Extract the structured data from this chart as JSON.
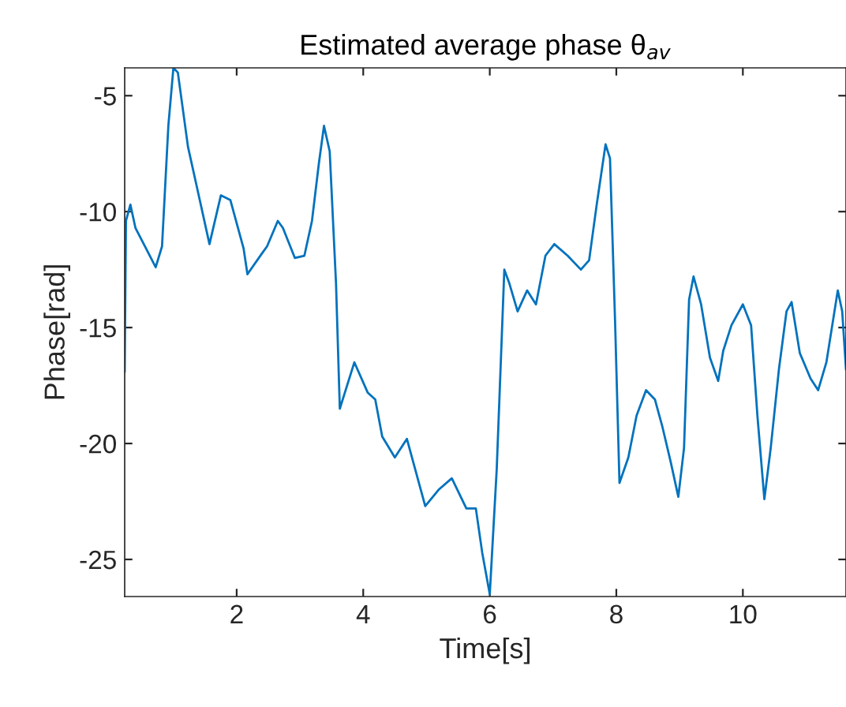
{
  "chart_data": {
    "type": "line",
    "title": "Estimated average phase θ$_{av}$",
    "xlabel": "Time[s]",
    "ylabel": "Phase[rad]",
    "xlim": [
      0.23,
      11.63
    ],
    "ylim": [
      -26.6,
      -3.8
    ],
    "xticks": [
      2,
      4,
      6,
      8,
      10
    ],
    "yticks": [
      -25,
      -20,
      -15,
      -10,
      -5
    ],
    "grid": false,
    "series": [
      {
        "color": "#0072bd",
        "x": [
          0.23,
          0.25,
          0.32,
          0.4,
          0.72,
          0.82,
          0.92,
          1.0,
          1.07,
          1.23,
          1.36,
          1.57,
          1.75,
          1.9,
          2.11,
          2.17,
          2.4,
          2.48,
          2.65,
          2.73,
          2.92,
          3.07,
          3.19,
          3.3,
          3.38,
          3.47,
          3.57,
          3.63,
          3.86,
          4.07,
          4.19,
          4.3,
          4.5,
          4.69,
          4.82,
          4.98,
          5.19,
          5.4,
          5.63,
          5.78,
          5.88,
          6.0,
          6.11,
          6.23,
          6.31,
          6.44,
          6.59,
          6.73,
          6.88,
          7.02,
          7.23,
          7.44,
          7.57,
          7.69,
          7.83,
          7.9,
          7.98,
          8.05,
          8.19,
          8.32,
          8.47,
          8.61,
          8.73,
          8.86,
          8.98,
          9.07,
          9.15,
          9.22,
          9.34,
          9.48,
          9.61,
          9.69,
          9.82,
          10.0,
          10.13,
          10.23,
          10.34,
          10.44,
          10.57,
          10.69,
          10.77,
          10.9,
          11.07,
          11.19,
          11.32,
          11.5,
          11.57,
          11.63
        ],
        "values": [
          -16.9,
          -10.4,
          -9.7,
          -10.7,
          -12.4,
          -11.5,
          -6.3,
          -3.8,
          -4.0,
          -7.2,
          -8.8,
          -11.4,
          -9.3,
          -9.5,
          -11.6,
          -12.7,
          -11.8,
          -11.5,
          -10.4,
          -10.7,
          -12.0,
          -11.9,
          -10.4,
          -7.9,
          -6.3,
          -7.4,
          -13.1,
          -18.5,
          -16.5,
          -17.8,
          -18.1,
          -19.7,
          -20.6,
          -19.8,
          -21.1,
          -22.7,
          -22.0,
          -21.5,
          -22.8,
          -22.8,
          -24.7,
          -26.5,
          -21.1,
          -12.5,
          -13.1,
          -14.3,
          -13.4,
          -14.0,
          -11.9,
          -11.4,
          -11.9,
          -12.5,
          -12.1,
          -9.7,
          -7.1,
          -7.7,
          -14.7,
          -21.7,
          -20.6,
          -18.8,
          -17.7,
          -18.1,
          -19.3,
          -20.8,
          -22.3,
          -20.2,
          -13.8,
          -12.8,
          -14.0,
          -16.3,
          -17.3,
          -16.0,
          -14.9,
          -14.0,
          -14.9,
          -18.8,
          -22.4,
          -20.2,
          -16.8,
          -14.3,
          -13.9,
          -16.1,
          -17.2,
          -17.7,
          -16.5,
          -13.4,
          -14.3,
          -16.8
        ]
      }
    ]
  }
}
